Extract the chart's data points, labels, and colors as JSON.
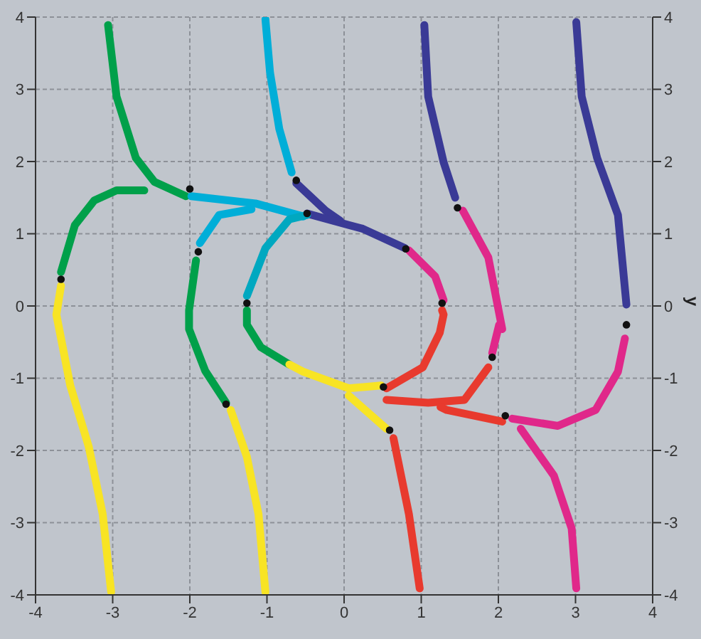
{
  "chart_data": {
    "type": "line",
    "xlim": [
      -4,
      4
    ],
    "xticks": [
      -4,
      -3,
      -2,
      -1,
      0,
      1,
      2,
      3,
      4
    ],
    "ylim": [
      -4,
      4
    ],
    "yticks": [
      -4,
      -3,
      -2,
      -1,
      0,
      1,
      2,
      3,
      4
    ],
    "y2lim": [
      -4,
      4
    ],
    "y2ticks": [
      -4,
      -3,
      -2,
      -1,
      0,
      1,
      2,
      3,
      4
    ],
    "y2label": "y",
    "grid": true,
    "marker": "none",
    "line_style": "solid",
    "series": [
      {
        "color": "#00a04a",
        "x": [
          -3.06,
          -2.95,
          -2.7,
          -2.46,
          -2.05
        ],
        "values": [
          3.89,
          2.9,
          2.05,
          1.72,
          1.52
        ]
      },
      {
        "color": "#00a04a",
        "x": [
          -3.67,
          -3.49,
          -3.24,
          -2.95,
          -2.59
        ],
        "values": [
          0.47,
          1.12,
          1.46,
          1.6,
          1.6
        ]
      },
      {
        "color": "#f8e424",
        "x": [
          -3.67,
          -3.73,
          -3.55,
          -3.31,
          -3.13,
          -3.02
        ],
        "values": [
          0.28,
          -0.12,
          -1.1,
          -1.95,
          -2.88,
          -3.96
        ]
      },
      {
        "color": "#00aed8",
        "x": [
          -1.02,
          -0.96,
          -0.84,
          -0.68
        ],
        "values": [
          3.97,
          3.23,
          2.45,
          1.85
        ]
      },
      {
        "color": "#3a3a96",
        "x": [
          -0.62,
          -0.4,
          -0.24,
          -0.05
        ],
        "values": [
          1.7,
          1.48,
          1.32,
          1.18
        ]
      },
      {
        "color": "#3a3a96",
        "x": [
          -0.48,
          0.06,
          0.24,
          0.79
        ],
        "values": [
          1.28,
          1.12,
          1.07,
          0.8
        ]
      },
      {
        "color": "#00aed8",
        "x": [
          -1.98,
          -1.15,
          -0.53
        ],
        "values": [
          1.52,
          1.42,
          1.24
        ]
      },
      {
        "color": "#00aed8",
        "x": [
          -1.87,
          -1.62,
          -1.2
        ],
        "values": [
          0.87,
          1.26,
          1.34
        ]
      },
      {
        "color": "#00a8c0",
        "x": [
          -1.26,
          -1.02,
          -0.71,
          -0.48
        ],
        "values": [
          0.14,
          0.8,
          1.2,
          1.26
        ]
      },
      {
        "color": "#00a04a",
        "x": [
          -1.92,
          -2.01,
          -2.01,
          -1.8,
          -1.53
        ],
        "values": [
          0.63,
          -0.06,
          -0.32,
          -0.9,
          -1.34
        ]
      },
      {
        "color": "#f8e424",
        "x": [
          -1.47,
          -1.26,
          -1.11,
          -1.02
        ],
        "values": [
          -1.44,
          -2.09,
          -2.88,
          -3.96
        ]
      },
      {
        "color": "#00a04a",
        "x": [
          -1.26,
          -1.26,
          -1.08,
          -0.71
        ],
        "values": [
          -0.06,
          -0.26,
          -0.57,
          -0.81
        ]
      },
      {
        "color": "#f8e424",
        "x": [
          -0.71,
          -0.53,
          0.06,
          0.48
        ],
        "values": [
          -0.81,
          -0.91,
          -1.14,
          -1.1
        ]
      },
      {
        "color": "#f8e424",
        "x": [
          0.06,
          0.55
        ],
        "values": [
          -1.24,
          -1.7
        ]
      },
      {
        "color": "#e83a2e",
        "x": [
          0.64,
          0.84,
          0.98
        ],
        "values": [
          -1.83,
          -2.88,
          -3.91
        ]
      },
      {
        "color": "#e83a2e",
        "x": [
          0.55,
          1.02,
          1.24,
          1.29,
          1.27
        ],
        "values": [
          -1.14,
          -0.85,
          -0.37,
          -0.12,
          -0.06
        ]
      },
      {
        "color": "#e0288a",
        "x": [
          0.84,
          1.18,
          1.29
        ],
        "values": [
          0.77,
          0.41,
          0.08
        ]
      },
      {
        "color": "#3a3a96",
        "x": [
          1.04,
          1.09,
          1.29,
          1.44
        ],
        "values": [
          3.89,
          2.9,
          1.99,
          1.5
        ]
      },
      {
        "color": "#e0288a",
        "x": [
          1.54,
          1.87,
          2.05,
          2.01,
          1.92
        ],
        "values": [
          1.32,
          0.67,
          -0.32,
          -0.26,
          -0.65
        ]
      },
      {
        "color": "#e83a2e",
        "x": [
          1.87,
          1.56,
          1.09,
          0.55
        ],
        "values": [
          -0.85,
          -1.3,
          -1.34,
          -1.3
        ]
      },
      {
        "color": "#e83a2e",
        "x": [
          1.25,
          1.33,
          2.05
        ],
        "values": [
          -1.4,
          -1.44,
          -1.6
        ]
      },
      {
        "color": "#e0288a",
        "x": [
          2.18,
          2.77,
          3.26,
          3.55,
          3.64
        ],
        "values": [
          -1.56,
          -1.66,
          -1.44,
          -0.91,
          -0.45
        ]
      },
      {
        "color": "#e0288a",
        "x": [
          2.29,
          2.72,
          2.95,
          3.01
        ],
        "values": [
          -1.7,
          -2.35,
          -3.08,
          -3.91
        ]
      },
      {
        "color": "#3a3a96",
        "x": [
          3.01,
          3.08,
          3.28,
          3.55,
          3.66
        ],
        "values": [
          3.93,
          2.9,
          2.05,
          1.26,
          0.02
        ]
      },
      {
        "type": "scatter",
        "marker": "circle",
        "color": "#111111",
        "x": [
          -2,
          -3.67,
          -0.62,
          -0.48,
          -1.89,
          -1.26,
          -1.53,
          0.51,
          0.59,
          1.27,
          0.8,
          1.47,
          1.92,
          2.09,
          3.66
        ],
        "values": [
          1.62,
          0.37,
          1.74,
          1.28,
          0.75,
          0.04,
          -1.36,
          -1.12,
          -1.72,
          0.04,
          0.79,
          1.36,
          -0.71,
          -1.52,
          -0.26
        ]
      }
    ]
  }
}
